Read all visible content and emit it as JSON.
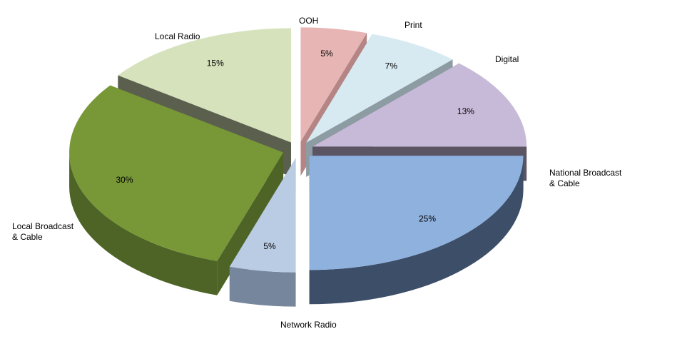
{
  "chart_data": {
    "type": "pie",
    "title": "",
    "style": "3d-exploded",
    "slices": [
      {
        "label": "OOH",
        "value": 5,
        "value_label": "5%",
        "color": "#E6B5B4",
        "side": "#B48584"
      },
      {
        "label": "Print",
        "value": 7,
        "value_label": "7%",
        "color": "#D8EAF1",
        "side": "#8C9CA2"
      },
      {
        "label": "Digital",
        "value": 13,
        "value_label": "13%",
        "color": "#C7BAD8",
        "side": "#5B5463"
      },
      {
        "label": "National Broadcast\n& Cable",
        "value": 25,
        "value_label": "25%",
        "color": "#8EB1DE",
        "side": "#3C4E68"
      },
      {
        "label": "Network Radio",
        "value": 5,
        "value_label": "5%",
        "color": "#B9CCE3",
        "side": "#75869D"
      },
      {
        "label": "Local Broadcast\n& Cable",
        "value": 30,
        "value_label": "30%",
        "color": "#789837",
        "side": "#4E6426"
      },
      {
        "label": "Local Radio",
        "value": 15,
        "value_label": "15%",
        "color": "#D6E2BC",
        "side": "#5B5F4E"
      }
    ]
  }
}
